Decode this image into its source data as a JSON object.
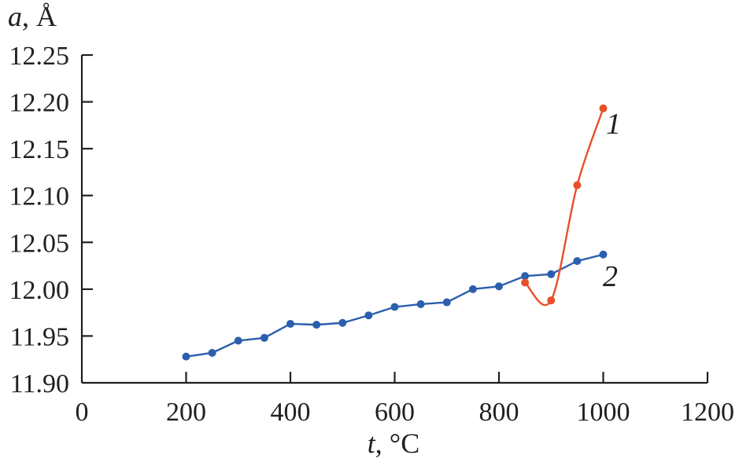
{
  "chart_data": {
    "type": "line",
    "title": "",
    "xlabel": {
      "var": "t",
      "unit": ", °C"
    },
    "ylabel": {
      "var": "a",
      "unit": ", Å"
    },
    "xlim": [
      0,
      1200
    ],
    "ylim": [
      11.9,
      12.25
    ],
    "xticks": [
      "0",
      "200",
      "400",
      "600",
      "800",
      "1000",
      "1200"
    ],
    "yticks": [
      "11.90",
      "11.95",
      "12.00",
      "12.05",
      "12.10",
      "12.15",
      "12.20",
      "12.25"
    ],
    "grid": false,
    "series": [
      {
        "name": "1",
        "color": "#e8502a",
        "x": [
          850,
          900,
          950,
          1000
        ],
        "y": [
          12.007,
          11.988,
          12.111,
          12.193
        ]
      },
      {
        "name": "2",
        "color": "#2b5fad",
        "x": [
          200,
          250,
          300,
          350,
          400,
          450,
          500,
          550,
          600,
          650,
          700,
          750,
          800,
          850,
          900,
          950,
          1000
        ],
        "y": [
          11.928,
          11.932,
          11.945,
          11.948,
          11.963,
          11.962,
          11.964,
          11.972,
          11.981,
          11.984,
          11.986,
          12.0,
          12.003,
          12.014,
          12.016,
          12.03,
          12.037
        ]
      }
    ]
  }
}
